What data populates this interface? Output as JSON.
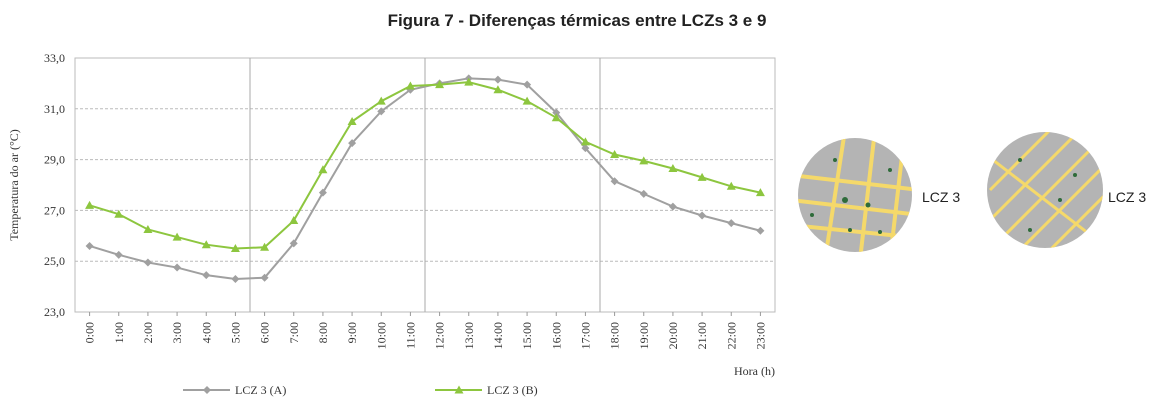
{
  "chart_data": {
    "type": "line",
    "title": "Figura 7 - Diferenças térmicas entre LCZs 3 e 9",
    "ylabel": "Temperatura do ar (°C)",
    "xlabel": "Hora (h)",
    "categories": [
      "0:00",
      "1:00",
      "2:00",
      "3:00",
      "4:00",
      "5:00",
      "6:00",
      "7:00",
      "8:00",
      "9:00",
      "10:00",
      "11:00",
      "12:00",
      "13:00",
      "14:00",
      "15:00",
      "16:00",
      "17:00",
      "18:00",
      "19:00",
      "20:00",
      "21:00",
      "22:00",
      "23:00"
    ],
    "series": [
      {
        "name": "LCZ 3 (A)",
        "color": "#a0a0a0",
        "marker": "diamond",
        "values": [
          25.6,
          25.25,
          24.95,
          24.75,
          24.45,
          24.3,
          24.35,
          25.7,
          27.7,
          29.65,
          30.9,
          31.75,
          32.0,
          32.2,
          32.15,
          31.95,
          30.85,
          29.45,
          28.15,
          27.65,
          27.15,
          26.8,
          26.5,
          26.2
        ]
      },
      {
        "name": "LCZ 3 (B)",
        "color": "#8dc63f",
        "marker": "triangle",
        "values": [
          27.2,
          26.85,
          26.25,
          25.95,
          25.65,
          25.5,
          25.55,
          26.6,
          28.6,
          30.5,
          31.3,
          31.9,
          31.95,
          32.05,
          31.75,
          31.3,
          30.65,
          29.7,
          29.2,
          28.95,
          28.65,
          28.3,
          27.95,
          27.7
        ]
      }
    ],
    "ylim": [
      23,
      33
    ],
    "yticks": [
      {
        "value": 23,
        "label": "23,0"
      },
      {
        "value": 25,
        "label": "25,0"
      },
      {
        "value": 27,
        "label": "27,0"
      },
      {
        "value": 29,
        "label": "29,0"
      },
      {
        "value": 31,
        "label": "31,0"
      },
      {
        "value": 33,
        "label": "33,0"
      }
    ],
    "grid": true,
    "legend": "bottom"
  },
  "insets": [
    {
      "label": "LCZ 3"
    },
    {
      "label": "LCZ 3"
    }
  ]
}
